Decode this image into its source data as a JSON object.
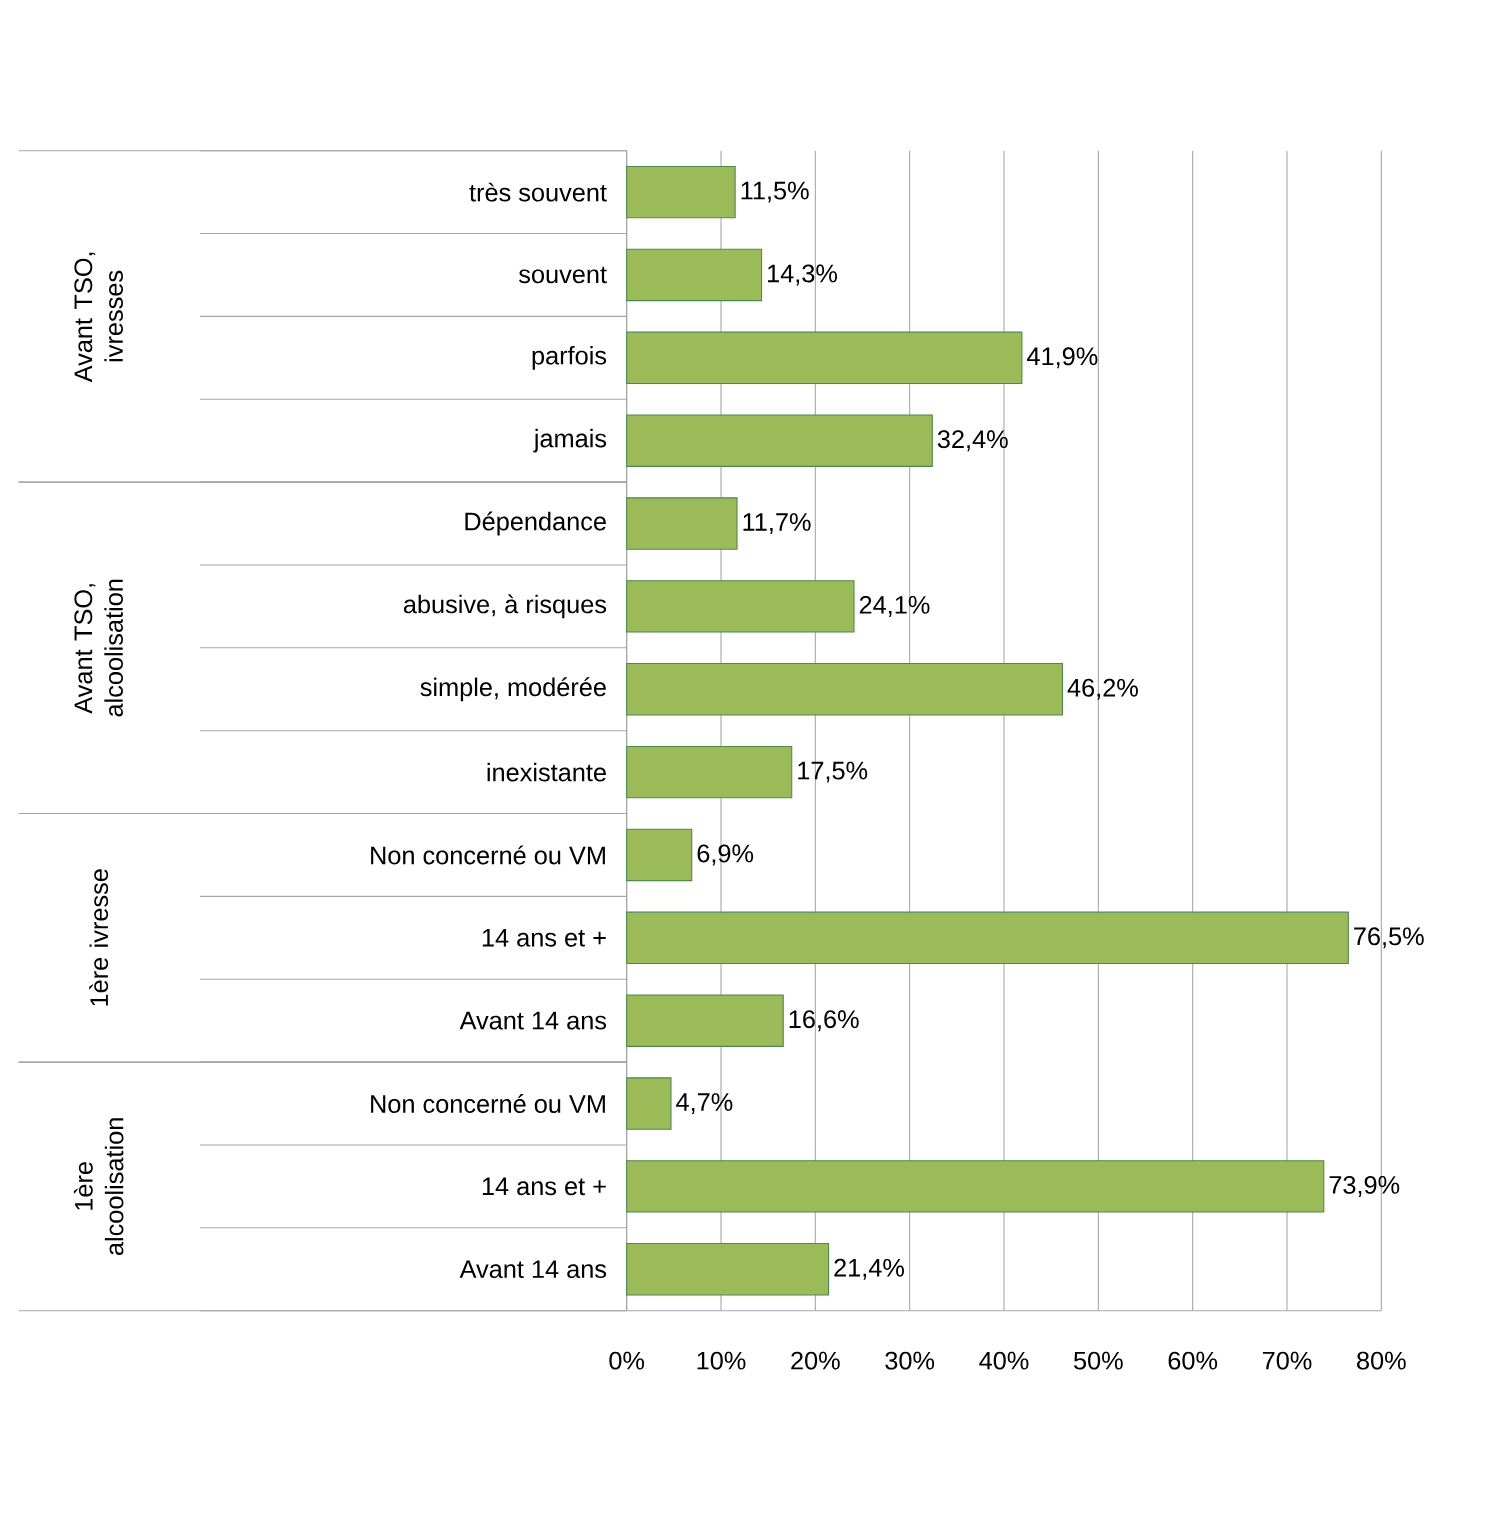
{
  "chart_data": {
    "type": "bar",
    "orientation": "horizontal",
    "categories": [
      "très souvent",
      "souvent",
      "parfois",
      "jamais",
      "Dépendance",
      "abusive, à risques",
      "simple, modérée",
      "inexistante",
      "Non concerné ou VM",
      "14 ans et +",
      "Avant 14 ans",
      "Non concerné ou VM",
      "14 ans et +",
      "Avant 14 ans"
    ],
    "values": [
      11.5,
      14.3,
      41.9,
      32.4,
      11.7,
      24.1,
      46.2,
      17.5,
      6.9,
      76.5,
      16.6,
      4.7,
      73.9,
      21.4
    ],
    "value_labels": [
      "11,5%",
      "14,3%",
      "41,9%",
      "32,4%",
      "11,7%",
      "24,1%",
      "46,2%",
      "17,5%",
      "6,9%",
      "76,5%",
      "16,6%",
      "4,7%",
      "73,9%",
      "21,4%"
    ],
    "color": "#9bbb59",
    "xlim": [
      0,
      80
    ],
    "xticks": [
      {
        "value": 0,
        "label": "0%"
      },
      {
        "value": 10,
        "label": "10%"
      },
      {
        "value": 20,
        "label": "20%"
      },
      {
        "value": 30,
        "label": "30%"
      },
      {
        "value": 40,
        "label": "40%"
      },
      {
        "value": 50,
        "label": "50%"
      },
      {
        "value": 60,
        "label": "60%"
      },
      {
        "value": 70,
        "label": "70%"
      },
      {
        "value": 80,
        "label": "80%"
      }
    ],
    "grid": "x",
    "annotations": [
      "Avant TSO, ivresses",
      "Avant TSO, alcoolisation",
      "1ère ivresse",
      "1ère alcoolisation"
    ]
  }
}
